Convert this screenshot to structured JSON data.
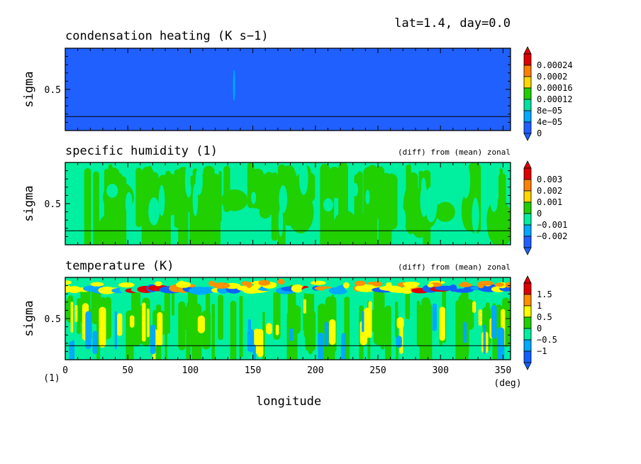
{
  "header": "lat=1.4, day=0.0",
  "xaxis": {
    "label": "longitude",
    "unit": "(deg)",
    "corner_label": "(1)",
    "ticks": [
      "0",
      "50",
      "100",
      "150",
      "200",
      "250",
      "300",
      "350"
    ],
    "range": [
      0,
      356
    ]
  },
  "chart_data": [
    {
      "type": "heatmap",
      "title": "condensation heating (K s−1)",
      "subtitle": "",
      "ylabel": "sigma",
      "yticks": [
        "0.5"
      ],
      "xlim": [
        0,
        356
      ],
      "ylim": [
        0,
        1
      ],
      "levels": [
        "0.00024",
        "0.0002",
        "0.00016",
        "0.00012",
        "8e−05",
        "4e−05",
        "0"
      ],
      "colors": [
        "#2060ff",
        "#00a8ff",
        "#00e0a0",
        "#20d000",
        "#ffd700",
        "#ff8000",
        "#e00000"
      ],
      "background_color": "#2060ff",
      "features": [
        {
          "x": 135,
          "sigma": 0.45,
          "level": "4e-05"
        }
      ]
    },
    {
      "type": "heatmap",
      "title": "specific humidity (1)",
      "subtitle": "(diff) from (mean) zonal",
      "ylabel": "sigma",
      "yticks": [
        "0.5"
      ],
      "xlim": [
        0,
        356
      ],
      "ylim": [
        0,
        1
      ],
      "levels": [
        "0.003",
        "0.002",
        "0.001",
        "0",
        "−0.001",
        "−0.002"
      ],
      "colors": [
        "#2060ff",
        "#00a8ff",
        "#00f0a0",
        "#20d000",
        "#ffd700",
        "#ff8000",
        "#e00000"
      ],
      "background_color": "#00f0a0"
    },
    {
      "type": "heatmap",
      "title": "temperature (K)",
      "subtitle": "(diff) from (mean) zonal",
      "ylabel": "sigma",
      "yticks": [
        "0.5"
      ],
      "xlim": [
        0,
        356
      ],
      "ylim": [
        0,
        1
      ],
      "levels": [
        "1.5",
        "1",
        "0.5",
        "0",
        "−0.5",
        "−1"
      ],
      "colors": [
        "#1060ff",
        "#00a8ff",
        "#00f0a0",
        "#20d000",
        "#ffff00",
        "#ff9000",
        "#e00000"
      ],
      "background_color": "#00f0a0"
    }
  ]
}
